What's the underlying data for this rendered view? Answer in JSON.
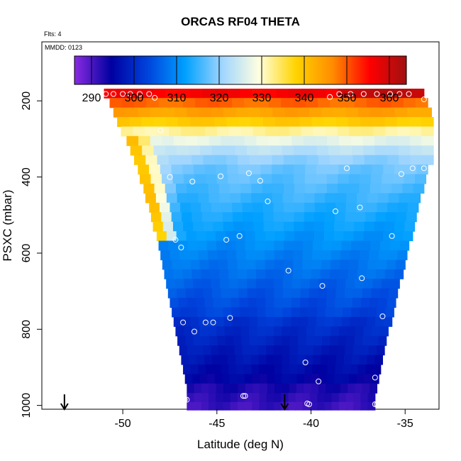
{
  "chart_data": {
    "type": "heatmap",
    "title": "ORCAS RF04 THETA",
    "annotations": {
      "flights": "Flts: 4",
      "date": "MMDD: 0123"
    },
    "xlabel": "Latitude (deg N)",
    "ylabel": "PSXC (mbar)",
    "xlim": [
      -54.3,
      -33.2
    ],
    "ylim": [
      1010,
      45
    ],
    "y_reversed": true,
    "xticks": [
      -50,
      -45,
      -40,
      -35
    ],
    "xtick_labels": [
      "-50",
      "-45",
      "-40",
      "-35"
    ],
    "yticks": [
      200,
      400,
      600,
      800,
      1000
    ],
    "ytick_labels": [
      "200",
      "400",
      "600",
      "800",
      "1000"
    ],
    "colorbar": {
      "range": [
        286,
        364
      ],
      "ticks": [
        290,
        300,
        310,
        320,
        330,
        340,
        350,
        360
      ],
      "tick_labels": [
        "290",
        "300",
        "310",
        "320",
        "330",
        "340",
        "350",
        "360"
      ],
      "colors": [
        "#8a2be2",
        "#0000a0",
        "#0044dd",
        "#00a0ff",
        "#9fd5ff",
        "#ffffe0",
        "#ffd400",
        "#ff8c00",
        "#ff0000",
        "#a01010"
      ]
    },
    "pressure_bands": [
      {
        "p": 180,
        "west": -51.0,
        "east": -34.0
      },
      {
        "p": 205,
        "west": -50.7,
        "east": -33.8
      },
      {
        "p": 230,
        "west": -50.5,
        "east": -33.6
      },
      {
        "p": 255,
        "west": -50.3,
        "east": -33.5
      },
      {
        "p": 280,
        "west": -50.1,
        "east": -33.5
      },
      {
        "p": 305,
        "west": -49.8,
        "east": -33.5
      },
      {
        "p": 330,
        "west": -49.6,
        "east": -33.5
      },
      {
        "p": 355,
        "west": -49.4,
        "east": -33.5
      },
      {
        "p": 380,
        "west": -49.2,
        "east": -33.8
      },
      {
        "p": 405,
        "west": -49.1,
        "east": -33.9
      },
      {
        "p": 430,
        "west": -48.9,
        "east": -34.0
      },
      {
        "p": 455,
        "west": -48.8,
        "east": -34.2
      },
      {
        "p": 480,
        "west": -48.6,
        "east": -34.3
      },
      {
        "p": 505,
        "west": -48.5,
        "east": -34.4
      },
      {
        "p": 530,
        "west": -48.4,
        "east": -34.5
      },
      {
        "p": 555,
        "west": -48.2,
        "east": -34.6
      },
      {
        "p": 580,
        "west": -48.1,
        "east": -34.8
      },
      {
        "p": 605,
        "west": -48.0,
        "east": -34.9
      },
      {
        "p": 630,
        "west": -47.9,
        "east": -35.0
      },
      {
        "p": 655,
        "west": -47.8,
        "east": -35.1
      },
      {
        "p": 680,
        "west": -47.7,
        "east": -35.3
      },
      {
        "p": 705,
        "west": -47.6,
        "east": -35.4
      },
      {
        "p": 730,
        "west": -47.5,
        "east": -35.5
      },
      {
        "p": 755,
        "west": -47.4,
        "east": -35.6
      },
      {
        "p": 780,
        "west": -47.3,
        "east": -35.7
      },
      {
        "p": 805,
        "west": -47.2,
        "east": -35.9
      },
      {
        "p": 830,
        "west": -47.1,
        "east": -36.0
      },
      {
        "p": 855,
        "west": -47.0,
        "east": -36.1
      },
      {
        "p": 880,
        "west": -46.9,
        "east": -36.2
      },
      {
        "p": 905,
        "west": -46.8,
        "east": -36.3
      },
      {
        "p": 930,
        "west": -46.7,
        "east": -36.4
      },
      {
        "p": 955,
        "west": -46.6,
        "east": -36.5
      },
      {
        "p": 980,
        "west": -46.6,
        "east": -36.6
      },
      {
        "p": 1002,
        "west": -46.6,
        "east": -36.6
      }
    ],
    "theta_profile": [
      {
        "p": 180,
        "theta": 356
      },
      {
        "p": 205,
        "theta": 349
      },
      {
        "p": 230,
        "theta": 344
      },
      {
        "p": 255,
        "theta": 339
      },
      {
        "p": 280,
        "theta": 332
      },
      {
        "p": 305,
        "theta": 327
      },
      {
        "p": 330,
        "theta": 323
      },
      {
        "p": 355,
        "theta": 320
      },
      {
        "p": 380,
        "theta": 318
      },
      {
        "p": 405,
        "theta": 317
      },
      {
        "p": 430,
        "theta": 316
      },
      {
        "p": 455,
        "theta": 315
      },
      {
        "p": 480,
        "theta": 314
      },
      {
        "p": 505,
        "theta": 313
      },
      {
        "p": 530,
        "theta": 312
      },
      {
        "p": 555,
        "theta": 311
      },
      {
        "p": 580,
        "theta": 310
      },
      {
        "p": 605,
        "theta": 309
      },
      {
        "p": 630,
        "theta": 308
      },
      {
        "p": 655,
        "theta": 307
      },
      {
        "p": 680,
        "theta": 306
      },
      {
        "p": 705,
        "theta": 305
      },
      {
        "p": 730,
        "theta": 304
      },
      {
        "p": 755,
        "theta": 303
      },
      {
        "p": 780,
        "theta": 301
      },
      {
        "p": 805,
        "theta": 300
      },
      {
        "p": 830,
        "theta": 299
      },
      {
        "p": 855,
        "theta": 298
      },
      {
        "p": 880,
        "theta": 297
      },
      {
        "p": 905,
        "theta": 296
      },
      {
        "p": 930,
        "theta": 295
      },
      {
        "p": 955,
        "theta": 293
      },
      {
        "p": 980,
        "theta": 292
      },
      {
        "p": 1002,
        "theta": 291
      }
    ],
    "observations": [
      {
        "lat": -50.9,
        "p": 182
      },
      {
        "lat": -50.5,
        "p": 182
      },
      {
        "lat": -50.0,
        "p": 182
      },
      {
        "lat": -49.6,
        "p": 182
      },
      {
        "lat": -49.1,
        "p": 182
      },
      {
        "lat": -48.6,
        "p": 182
      },
      {
        "lat": -48.3,
        "p": 192
      },
      {
        "lat": -39.0,
        "p": 190
      },
      {
        "lat": -38.5,
        "p": 182
      },
      {
        "lat": -37.9,
        "p": 182
      },
      {
        "lat": -37.2,
        "p": 182
      },
      {
        "lat": -36.5,
        "p": 182
      },
      {
        "lat": -35.8,
        "p": 182
      },
      {
        "lat": -35.3,
        "p": 182
      },
      {
        "lat": -34.8,
        "p": 182
      },
      {
        "lat": -34.0,
        "p": 196
      },
      {
        "lat": -48.0,
        "p": 278
      },
      {
        "lat": -47.5,
        "p": 400
      },
      {
        "lat": -46.3,
        "p": 412
      },
      {
        "lat": -44.8,
        "p": 398
      },
      {
        "lat": -43.3,
        "p": 390
      },
      {
        "lat": -42.7,
        "p": 410
      },
      {
        "lat": -42.3,
        "p": 464
      },
      {
        "lat": -38.7,
        "p": 490
      },
      {
        "lat": -38.1,
        "p": 377
      },
      {
        "lat": -37.4,
        "p": 480
      },
      {
        "lat": -35.2,
        "p": 392
      },
      {
        "lat": -34.6,
        "p": 377
      },
      {
        "lat": -34.0,
        "p": 377
      },
      {
        "lat": -47.2,
        "p": 565
      },
      {
        "lat": -46.9,
        "p": 585
      },
      {
        "lat": -44.5,
        "p": 565
      },
      {
        "lat": -43.8,
        "p": 555
      },
      {
        "lat": -41.2,
        "p": 646
      },
      {
        "lat": -39.4,
        "p": 686
      },
      {
        "lat": -37.3,
        "p": 666
      },
      {
        "lat": -35.7,
        "p": 555
      },
      {
        "lat": -46.8,
        "p": 782
      },
      {
        "lat": -46.2,
        "p": 806
      },
      {
        "lat": -45.6,
        "p": 782
      },
      {
        "lat": -45.2,
        "p": 782
      },
      {
        "lat": -44.3,
        "p": 770
      },
      {
        "lat": -36.2,
        "p": 766
      },
      {
        "lat": -40.3,
        "p": 887
      },
      {
        "lat": -39.6,
        "p": 937
      },
      {
        "lat": -36.6,
        "p": 927
      },
      {
        "lat": -46.7,
        "p": 985
      },
      {
        "lat": -46.6,
        "p": 985
      },
      {
        "lat": -43.6,
        "p": 975
      },
      {
        "lat": -43.5,
        "p": 975
      },
      {
        "lat": -40.2,
        "p": 995
      },
      {
        "lat": -40.1,
        "p": 997
      },
      {
        "lat": -36.6,
        "p": 997
      },
      {
        "lat": -36.5,
        "p": 997
      }
    ],
    "arrows": [
      {
        "lat": -53.1
      },
      {
        "lat": -41.4
      }
    ]
  }
}
